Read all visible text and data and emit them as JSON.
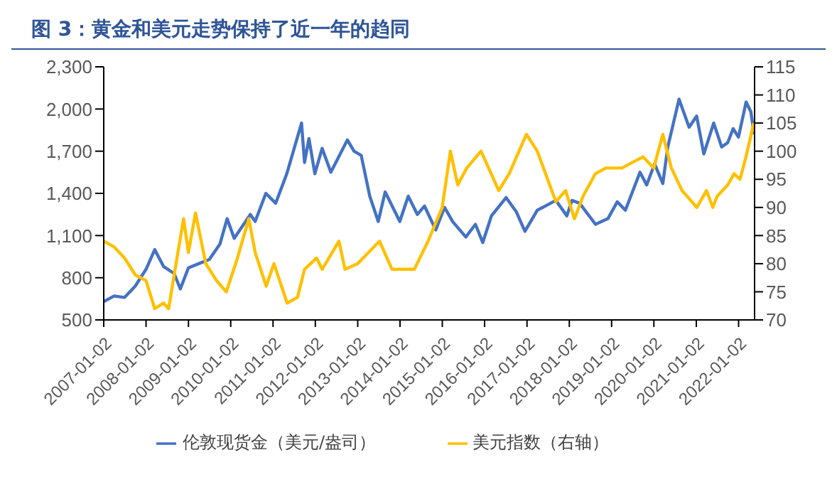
{
  "chart_data": {
    "type": "line",
    "title": "图 3：黄金和美元走势保持了近一年的趋同",
    "xlim": [
      "2007-01-02",
      "2022-05-20"
    ],
    "xticks": [
      "2007-01-02",
      "2008-01-02",
      "2009-01-02",
      "2010-01-02",
      "2011-01-02",
      "2012-01-02",
      "2013-01-02",
      "2014-01-02",
      "2015-01-02",
      "2016-01-02",
      "2017-01-02",
      "2018-01-02",
      "2019-01-02",
      "2020-01-02",
      "2021-01-02",
      "2022-01-02"
    ],
    "ylim": [
      500,
      2300
    ],
    "yticks": [
      500,
      800,
      {
        "value": 1100,
        "label": "1,100"
      },
      {
        "value": 1400,
        "label": "1,400"
      },
      {
        "value": 1700,
        "label": "1,700"
      },
      {
        "value": 2000,
        "label": "2,000"
      },
      {
        "value": 2300,
        "label": "2,300"
      }
    ],
    "y2lim": [
      70,
      115
    ],
    "y2ticks": [
      70,
      75,
      80,
      85,
      90,
      95,
      100,
      105,
      110,
      115
    ],
    "grid": false,
    "legend": "bottom",
    "marker": "none",
    "line_style": "solid",
    "series": [
      {
        "name": "伦敦现货金（美元/盎司）",
        "color": "#4472c4",
        "x": [
          "2007-01-02",
          "2007-04-01",
          "2007-07-01",
          "2007-10-01",
          "2008-01-02",
          "2008-03-17",
          "2008-06-01",
          "2008-09-01",
          "2008-10-24",
          "2009-01-02",
          "2009-04-01",
          "2009-07-01",
          "2009-10-01",
          "2009-12-02",
          "2010-02-01",
          "2010-06-20",
          "2010-08-01",
          "2010-11-01",
          "2011-01-25",
          "2011-05-01",
          "2011-09-05",
          "2011-10-01",
          "2011-11-08",
          "2011-12-29",
          "2012-03-01",
          "2012-05-15",
          "2012-10-05",
          "2012-12-01",
          "2013-02-01",
          "2013-04-16",
          "2013-06-28",
          "2013-08-27",
          "2013-12-31",
          "2014-03-14",
          "2014-06-01",
          "2014-08-01",
          "2014-11-06",
          "2015-01-22",
          "2015-04-01",
          "2015-07-24",
          "2015-10-15",
          "2015-12-17",
          "2016-03-01",
          "2016-07-06",
          "2016-10-01",
          "2016-12-15",
          "2017-04-01",
          "2017-09-08",
          "2017-12-12",
          "2018-01-25",
          "2018-04-01",
          "2018-08-16",
          "2018-12-01",
          "2019-02-20",
          "2019-05-01",
          "2019-09-04",
          "2019-11-01",
          "2020-01-08",
          "2020-03-19",
          "2020-05-01",
          "2020-08-06",
          "2020-11-01",
          "2021-01-05",
          "2021-03-08",
          "2021-06-01",
          "2021-08-09",
          "2021-09-30",
          "2021-11-16",
          "2022-01-01",
          "2022-03-08",
          "2022-04-18",
          "2022-05-16"
        ],
        "values": [
          630,
          670,
          660,
          740,
          860,
          1000,
          880,
          830,
          720,
          870,
          900,
          930,
          1040,
          1220,
          1080,
          1250,
          1200,
          1400,
          1330,
          1540,
          1900,
          1620,
          1790,
          1540,
          1720,
          1550,
          1780,
          1700,
          1670,
          1380,
          1200,
          1410,
          1200,
          1380,
          1250,
          1310,
          1140,
          1300,
          1200,
          1090,
          1180,
          1050,
          1240,
          1370,
          1270,
          1130,
          1280,
          1350,
          1240,
          1350,
          1330,
          1180,
          1220,
          1340,
          1280,
          1550,
          1460,
          1610,
          1470,
          1730,
          2070,
          1870,
          1950,
          1680,
          1900,
          1730,
          1760,
          1860,
          1800,
          2050,
          1980,
          1820
        ]
      },
      {
        "name": "美元指数（右轴）",
        "color": "#ffc000",
        "axis": "y2",
        "x": [
          "2007-01-02",
          "2007-04-01",
          "2007-07-01",
          "2007-10-01",
          "2008-01-02",
          "2008-03-17",
          "2008-06-01",
          "2008-07-15",
          "2008-09-01",
          "2008-11-21",
          "2009-01-02",
          "2009-03-04",
          "2009-06-01",
          "2009-09-01",
          "2009-11-25",
          "2010-03-01",
          "2010-06-07",
          "2010-08-01",
          "2010-11-04",
          "2011-01-10",
          "2011-05-04",
          "2011-08-01",
          "2011-10-01",
          "2012-01-13",
          "2012-03-01",
          "2012-07-24",
          "2012-09-14",
          "2013-01-01",
          "2013-07-09",
          "2013-10-25",
          "2014-05-06",
          "2014-09-01",
          "2015-01-01",
          "2015-03-13",
          "2015-05-15",
          "2015-08-01",
          "2015-12-02",
          "2016-05-03",
          "2016-08-01",
          "2016-12-28",
          "2017-04-01",
          "2017-09-08",
          "2017-12-01",
          "2018-02-15",
          "2018-05-01",
          "2018-08-15",
          "2018-11-12",
          "2019-04-01",
          "2019-09-30",
          "2020-01-01",
          "2020-03-19",
          "2020-06-01",
          "2020-09-01",
          "2021-01-06",
          "2021-03-31",
          "2021-05-25",
          "2021-07-01",
          "2021-10-01",
          "2021-11-24",
          "2022-01-14",
          "2022-03-07",
          "2022-05-13"
        ],
        "values": [
          84,
          83,
          81,
          78,
          77,
          72,
          73,
          72,
          78,
          88,
          82,
          89,
          80,
          77,
          75,
          81,
          88,
          82,
          76,
          80,
          73,
          74,
          79,
          81,
          79,
          84,
          79,
          80,
          84,
          79,
          79,
          84,
          90,
          100,
          94,
          97,
          100,
          93,
          96,
          103,
          100,
          91,
          93,
          88,
          92,
          96,
          97,
          97,
          99,
          97,
          103,
          97,
          93,
          90,
          93,
          90,
          92,
          94,
          96,
          95,
          99,
          105
        ]
      }
    ]
  }
}
